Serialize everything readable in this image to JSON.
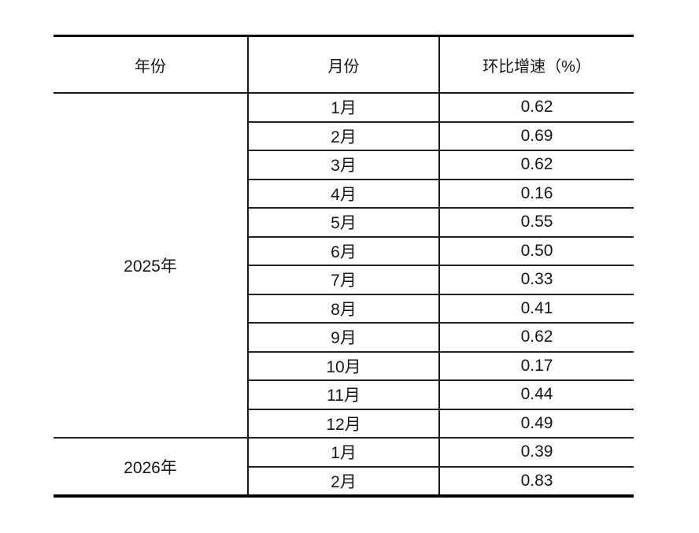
{
  "table": {
    "columns": [
      {
        "label": "年份"
      },
      {
        "label": "月份"
      },
      {
        "label": "环比增速（%）"
      }
    ],
    "year_groups": [
      {
        "year": "2025年",
        "rows": [
          {
            "month": "1月",
            "value": "0.62"
          },
          {
            "month": "2月",
            "value": "0.69"
          },
          {
            "month": "3月",
            "value": "0.62"
          },
          {
            "month": "4月",
            "value": "0.16"
          },
          {
            "month": "5月",
            "value": "0.55"
          },
          {
            "month": "6月",
            "value": "0.50"
          },
          {
            "month": "7月",
            "value": "0.33"
          },
          {
            "month": "8月",
            "value": "0.41"
          },
          {
            "month": "9月",
            "value": "0.62"
          },
          {
            "month": "10月",
            "value": "0.17"
          },
          {
            "month": "11月",
            "value": "0.44"
          },
          {
            "month": "12月",
            "value": "0.49"
          }
        ]
      },
      {
        "year": "2026年",
        "rows": [
          {
            "month": "1月",
            "value": "0.39"
          },
          {
            "month": "2月",
            "value": "0.83"
          }
        ]
      }
    ]
  },
  "colors": {
    "background": "#ffffff",
    "border": "#1a1a1a",
    "thick_rule": "#000000",
    "text": "#16161e"
  },
  "chart_data": {
    "type": "table",
    "columns": [
      "年份",
      "月份",
      "环比增速（%）"
    ],
    "rows": [
      [
        "2025年",
        "1月",
        0.62
      ],
      [
        "2025年",
        "2月",
        0.69
      ],
      [
        "2025年",
        "3月",
        0.62
      ],
      [
        "2025年",
        "4月",
        0.16
      ],
      [
        "2025年",
        "5月",
        0.55
      ],
      [
        "2025年",
        "6月",
        0.5
      ],
      [
        "2025年",
        "7月",
        0.33
      ],
      [
        "2025年",
        "8月",
        0.41
      ],
      [
        "2025年",
        "9月",
        0.62
      ],
      [
        "2025年",
        "10月",
        0.17
      ],
      [
        "2025年",
        "11月",
        0.44
      ],
      [
        "2025年",
        "12月",
        0.49
      ],
      [
        "2026年",
        "1月",
        0.39
      ],
      [
        "2026年",
        "2月",
        0.83
      ]
    ]
  }
}
